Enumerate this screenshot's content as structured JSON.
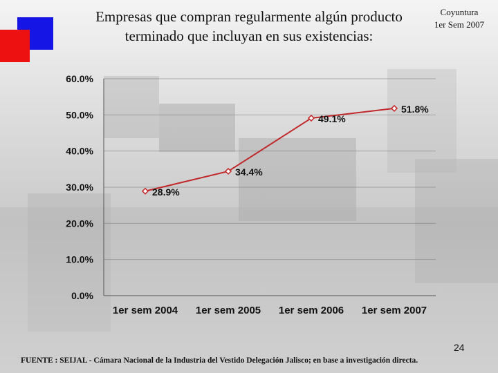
{
  "title": "Empresas que compran regularmente algún producto terminado que incluyan en sus existencias:",
  "badge": {
    "line1": "Coyuntura",
    "line2": "1er Sem 2007"
  },
  "colors": {
    "series": "#c0282a",
    "accent_blue": "#1515e6",
    "accent_red": "#ee1111"
  },
  "chart_data": {
    "type": "line",
    "title": "",
    "xlabel": "",
    "ylabel": "",
    "categories": [
      "1er sem 2004",
      "1er sem 2005",
      "1er sem 2006",
      "1er sem 2007"
    ],
    "series": [
      {
        "values": [
          28.9,
          34.4,
          49.1,
          51.8
        ],
        "labels": [
          "28.9%",
          "34.4%",
          "49.1%",
          "51.8%"
        ]
      }
    ],
    "ylim": [
      0,
      60
    ],
    "yticks": [
      "0.0%",
      "10.0%",
      "20.0%",
      "30.0%",
      "40.0%",
      "50.0%",
      "60.0%"
    ],
    "grid": true,
    "legend": "none"
  },
  "page_number": "24",
  "source": "FUENTE : SEIJAL - Cámara Nacional de la Industria del Vestido Delegación Jalisco; en base a investigación directa."
}
